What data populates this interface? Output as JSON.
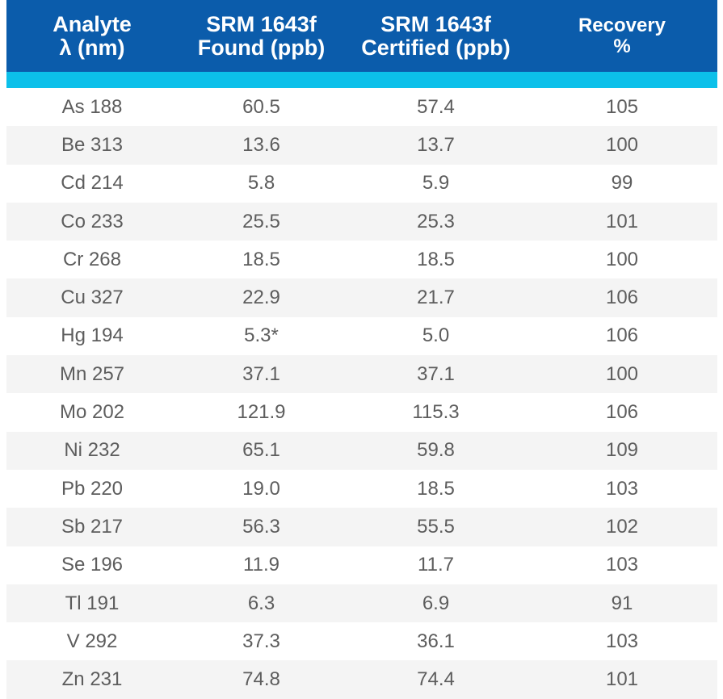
{
  "colors": {
    "header_bg": "#0b5cab",
    "accent_bar": "#0cc0ea",
    "row_alt_bg": "#f4f4f4",
    "body_text": "#5d5d5d"
  },
  "table": {
    "headers": [
      "Analyte\nλ (nm)",
      "SRM 1643f\nFound (ppb)",
      "SRM 1643f\nCertified (ppb)",
      "Recovery\n%"
    ],
    "rows": [
      [
        "As 188",
        "60.5",
        "57.4",
        "105"
      ],
      [
        "Be 313",
        "13.6",
        "13.7",
        "100"
      ],
      [
        "Cd 214",
        "5.8",
        "5.9",
        "99"
      ],
      [
        "Co 233",
        "25.5",
        "25.3",
        "101"
      ],
      [
        "Cr 268",
        "18.5",
        "18.5",
        "100"
      ],
      [
        "Cu 327",
        "22.9",
        "21.7",
        "106"
      ],
      [
        "Hg 194",
        "5.3*",
        "5.0",
        "106"
      ],
      [
        "Mn 257",
        "37.1",
        "37.1",
        "100"
      ],
      [
        "Mo 202",
        "121.9",
        "115.3",
        "106"
      ],
      [
        "Ni 232",
        "65.1",
        "59.8",
        "109"
      ],
      [
        "Pb 220",
        "19.0",
        "18.5",
        "103"
      ],
      [
        "Sb 217",
        "56.3",
        "55.5",
        "102"
      ],
      [
        "Se 196",
        "11.9",
        "11.7",
        "103"
      ],
      [
        "Tl 191",
        "6.3",
        "6.9",
        "91"
      ],
      [
        "V 292",
        "37.3",
        "36.1",
        "103"
      ],
      [
        "Zn 231",
        "74.8",
        "74.4",
        "101"
      ]
    ]
  }
}
